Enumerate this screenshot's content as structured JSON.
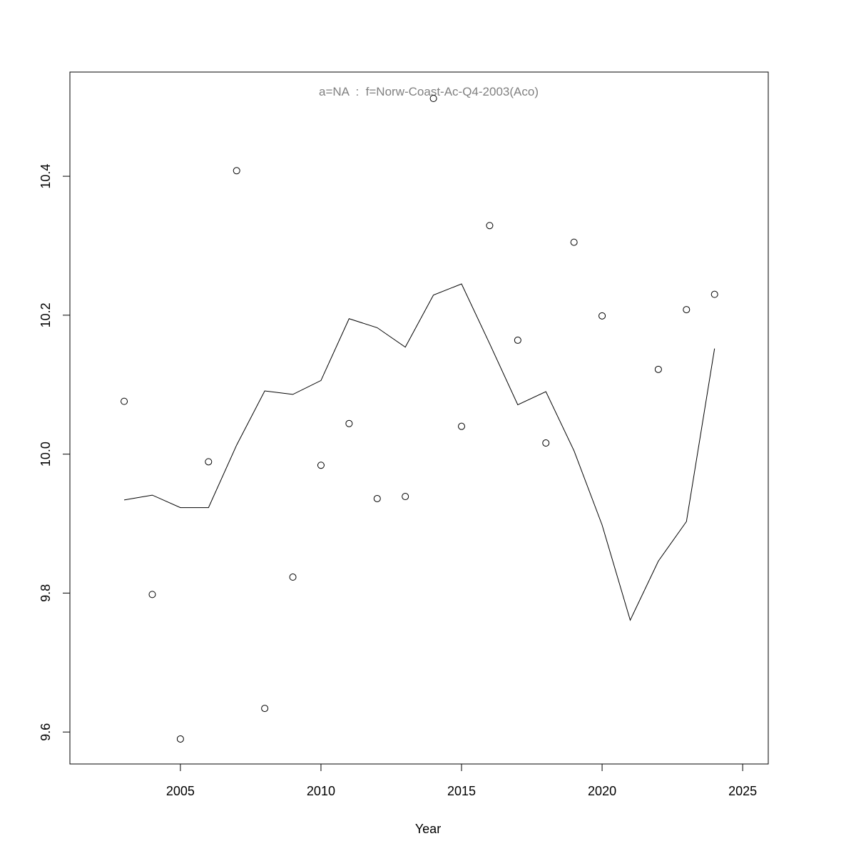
{
  "chart_data": {
    "type": "line+scatter",
    "title": "a=NA  :  f=Norw-Coast-Ac-Q4-2003(Aco)",
    "xlabel": "Year",
    "ylabel": "",
    "xlim": [
      2001.07,
      2025.91
    ],
    "ylim": [
      9.554,
      10.55
    ],
    "xticks": [
      2005,
      2010,
      2015,
      2020,
      2025
    ],
    "yticks": [
      9.6,
      9.8,
      10.0,
      10.2,
      10.4
    ],
    "ytick_labels": [
      "9.6",
      "9.8",
      "10.0",
      "10.2",
      "10.4"
    ],
    "grid": false,
    "colors": {
      "title": "#808080",
      "line": "#000000",
      "points": "#000000"
    },
    "points": {
      "x": [
        2003,
        2004,
        2005,
        2006,
        2007,
        2008,
        2009,
        2010,
        2011,
        2012,
        2013,
        2014,
        2015,
        2016,
        2017,
        2018,
        2019,
        2020,
        2022,
        2023,
        2024
      ],
      "y": [
        10.076,
        9.798,
        9.59,
        9.989,
        10.408,
        9.634,
        9.823,
        9.984,
        10.044,
        9.936,
        9.939,
        10.512,
        10.04,
        10.329,
        10.164,
        10.016,
        10.305,
        10.199,
        10.122,
        10.208,
        10.23
      ]
    },
    "line": {
      "x": [
        2003,
        2004,
        2005,
        2006,
        2007,
        2008,
        2009,
        2010,
        2011,
        2012,
        2013,
        2014,
        2015,
        2016,
        2017,
        2018,
        2019,
        2020,
        2021,
        2022,
        2023,
        2024
      ],
      "y": [
        9.934,
        9.941,
        9.923,
        9.923,
        10.013,
        10.091,
        10.086,
        10.106,
        10.195,
        10.182,
        10.154,
        10.229,
        10.245,
        10.159,
        10.071,
        10.09,
        10.005,
        9.898,
        9.761,
        9.846,
        9.903,
        10.152
      ]
    }
  }
}
